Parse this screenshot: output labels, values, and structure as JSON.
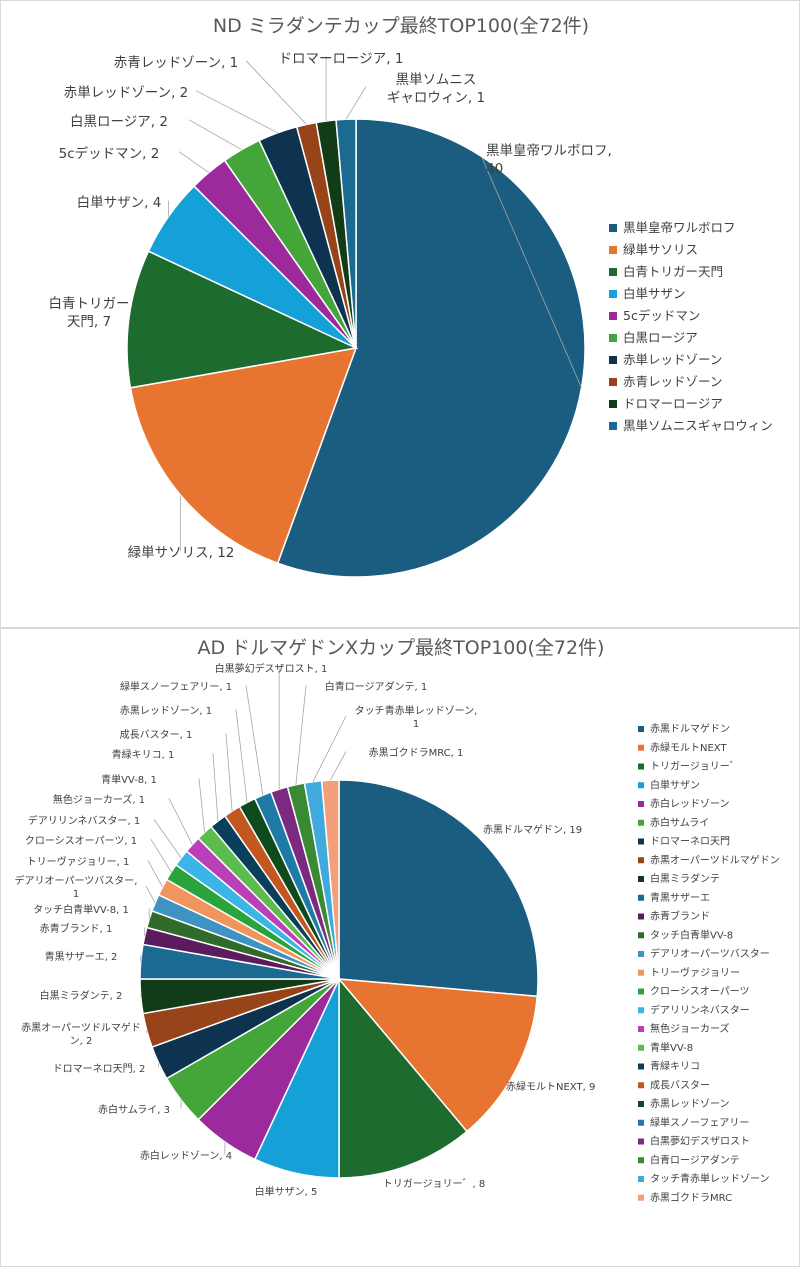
{
  "chart_data": [
    {
      "type": "pie",
      "title": "ND ミラダンテカップ最終TOP100(全72件)",
      "legend_position": "right",
      "slices": [
        {
          "label": "黒単皇帝ワルボロフ",
          "value": 40,
          "color": "#1a5d80",
          "data_label": "黒単皇帝ワルボロフ,\n40"
        },
        {
          "label": "緑単サソリス",
          "value": 12,
          "color": "#e87432",
          "data_label": "緑単サソリス, 12"
        },
        {
          "label": "白青トリガー天門",
          "value": 7,
          "color": "#1d6b2f",
          "data_label": "白青トリガー\n天門, 7"
        },
        {
          "label": "白単サザン",
          "value": 4,
          "color": "#16a0d8",
          "data_label": "白単サザン, 4"
        },
        {
          "label": "5cデッドマン",
          "value": 2,
          "color": "#9c2a9c",
          "data_label": "5cデッドマン, 2"
        },
        {
          "label": "白黒ロージア",
          "value": 2,
          "color": "#44a639",
          "data_label": "白黒ロージア, 2"
        },
        {
          "label": "赤単レッドゾーン",
          "value": 2,
          "color": "#0d3350",
          "data_label": "赤単レッドゾーン, 2"
        },
        {
          "label": "赤青レッドゾーン",
          "value": 1,
          "color": "#98441a",
          "data_label": "赤青レッドゾーン, 1"
        },
        {
          "label": "ドロマーロージア",
          "value": 1,
          "color": "#123c17",
          "data_label": "ドロマーロージア, 1"
        },
        {
          "label": "黒単ソムニスギャロウィン",
          "value": 1,
          "color": "#1a6a91",
          "data_label": "黒単ソムニス\nギャロウィン, 1"
        }
      ]
    },
    {
      "type": "pie",
      "title": "AD ドルマゲドンXカップ最終TOP100(全72件)",
      "legend_position": "right",
      "slices": [
        {
          "label": "赤黒ドルマゲドン",
          "value": 19,
          "color": "#1a5d80",
          "data_label": "赤黒ドルマゲドン, 19"
        },
        {
          "label": "赤緑モルトNEXT",
          "value": 9,
          "color": "#e87432",
          "data_label": "赤緑モルトNEXT, 9"
        },
        {
          "label": "トリガージョリー゛",
          "value": 8,
          "color": "#1d6b2f",
          "data_label": "トリガージョリー゛, 8"
        },
        {
          "label": "白単サザン",
          "value": 5,
          "color": "#16a0d8",
          "data_label": "白単サザン, 5"
        },
        {
          "label": "赤白レッドゾーン",
          "value": 4,
          "color": "#9c2a9c",
          "data_label": "赤白レッドゾーン, 4"
        },
        {
          "label": "赤白サムライ",
          "value": 3,
          "color": "#44a639",
          "data_label": "赤白サムライ, 3"
        },
        {
          "label": "ドロマーネロ天門",
          "value": 2,
          "color": "#0d3350",
          "data_label": "ドロマーネロ天門, 2"
        },
        {
          "label": "赤黒オーパーツドルマゲドン",
          "value": 2,
          "color": "#98441a",
          "data_label": "赤黒オーパーツドルマゲド\nン, 2"
        },
        {
          "label": "白黒ミラダンテ",
          "value": 2,
          "color": "#123c17",
          "data_label": "白黒ミラダンテ, 2"
        },
        {
          "label": "青黒サザーエ",
          "value": 2,
          "color": "#1a6a91",
          "data_label": "青黒サザーエ, 2"
        },
        {
          "label": "赤青ブランド",
          "value": 1,
          "color": "#5a1c5e",
          "data_label": "赤青ブランド, 1"
        },
        {
          "label": "タッチ白青単VV-8",
          "value": 1,
          "color": "#2f6b2a",
          "data_label": "タッチ白青単VV-8, 1"
        },
        {
          "label": "デアリオーパーツバスター",
          "value": 1,
          "color": "#3e93c2",
          "data_label": "デアリオーパーツバスター,\n1"
        },
        {
          "label": "トリーヴァジョリー",
          "value": 1,
          "color": "#f0955e",
          "data_label": "トリーヴァジョリー, 1"
        },
        {
          "label": "クローシスオーパーツ",
          "value": 1,
          "color": "#2aa33c",
          "data_label": "クローシスオーパーツ, 1"
        },
        {
          "label": "デアリリンネバスター",
          "value": 1,
          "color": "#3bb4e6",
          "data_label": "デアリリンネバスター, 1"
        },
        {
          "label": "無色ジョーカーズ",
          "value": 1,
          "color": "#b940b8",
          "data_label": "無色ジョーカーズ, 1"
        },
        {
          "label": "青単VV-8",
          "value": 1,
          "color": "#5cbc4e",
          "data_label": "青単VV-8, 1"
        },
        {
          "label": "青緑キリコ",
          "value": 1,
          "color": "#0a3f5c",
          "data_label": "青緑キリコ, 1"
        },
        {
          "label": "成長バスター",
          "value": 1,
          "color": "#c4561f",
          "data_label": "成長バスター, 1"
        },
        {
          "label": "赤黒レッドゾーン",
          "value": 1,
          "color": "#0f4a1c",
          "data_label": "赤黒レッドゾーン, 1"
        },
        {
          "label": "緑単スノーフェアリー",
          "value": 1,
          "color": "#1f7aa8",
          "data_label": "緑単スノーフェアリー, 1"
        },
        {
          "label": "白黒夢幻デスザロスト",
          "value": 1,
          "color": "#7b2a7f",
          "data_label": "白黒夢幻デスザロスト, 1"
        },
        {
          "label": "白青ロージアダンテ",
          "value": 1,
          "color": "#3a8a34",
          "data_label": "白青ロージアダンテ, 1"
        },
        {
          "label": "タッチ青赤単レッドゾーン",
          "value": 1,
          "color": "#40a9de",
          "data_label": "タッチ青赤単レッドゾーン,\n1"
        },
        {
          "label": "赤黒ゴクドラMRC",
          "value": 1,
          "color": "#f3a07a",
          "data_label": "赤黒ゴクドラMRC, 1"
        }
      ]
    }
  ]
}
